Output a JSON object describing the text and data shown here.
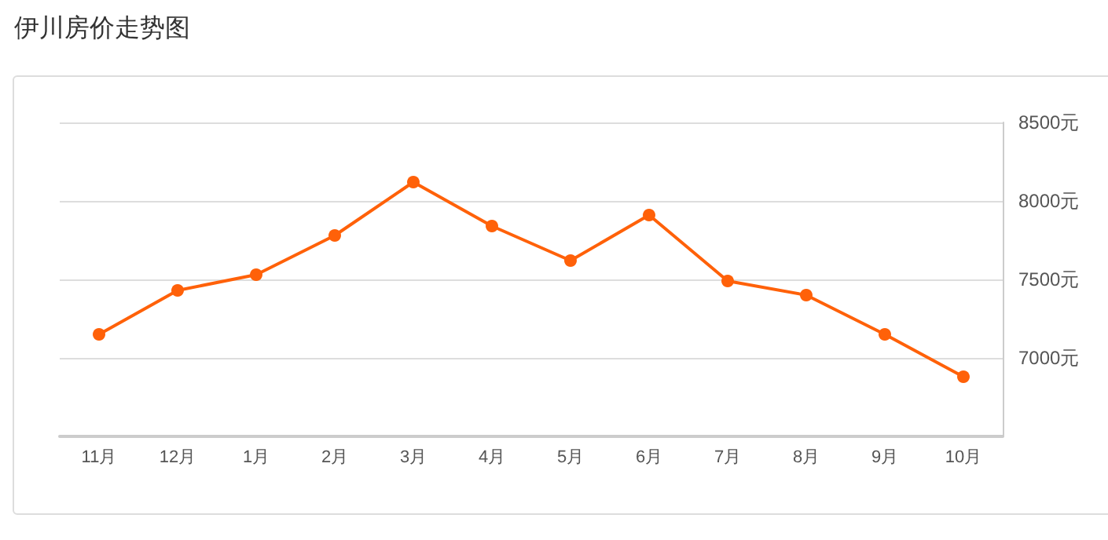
{
  "chart_data": {
    "type": "line",
    "title": "伊川房价走势图",
    "categories": [
      "11月",
      "12月",
      "1月",
      "2月",
      "3月",
      "4月",
      "5月",
      "6月",
      "7月",
      "8月",
      "9月",
      "10月"
    ],
    "series": [
      {
        "color": "#ff6109",
        "values": [
          7150,
          7430,
          7530,
          7780,
          8120,
          7840,
          7620,
          7910,
          7490,
          7400,
          7150,
          6880
        ]
      }
    ],
    "ylim": [
      6500,
      8500
    ],
    "yticks": [
      {
        "value": 6500,
        "label": null
      },
      {
        "value": 7000,
        "label": "7000元"
      },
      {
        "value": 7500,
        "label": "7500元"
      },
      {
        "value": 8000,
        "label": "8000元"
      },
      {
        "value": 8500,
        "label": "8500元"
      }
    ],
    "grid": "y",
    "marker": "circle",
    "line_style": "solid"
  }
}
